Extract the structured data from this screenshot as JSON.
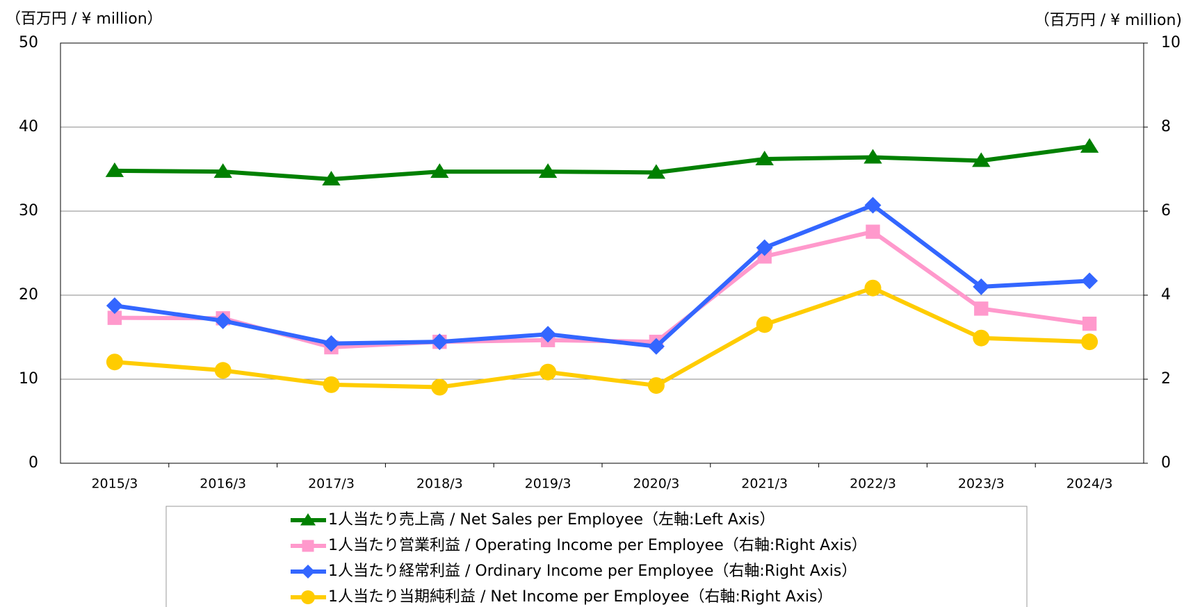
{
  "chart_data": {
    "type": "line",
    "y_label": "（百万円 / ¥ million）",
    "y2_label": "（百万円 / ¥ million)",
    "categories": [
      "2015/3",
      "2016/3",
      "2017/3",
      "2018/3",
      "2019/3",
      "2020/3",
      "2021/3",
      "2022/3",
      "2023/3",
      "2024/3"
    ],
    "ylim": [
      0,
      50
    ],
    "yticks": [
      0,
      10,
      20,
      30,
      40,
      50
    ],
    "y2lim": [
      0,
      10
    ],
    "y2ticks": [
      0,
      2,
      4,
      6,
      8,
      10
    ],
    "grid": true,
    "series": [
      {
        "name": "1人当たり売上高 / Net Sales per Employee（左軸:Left Axis）",
        "color": "#008000",
        "marker": "triangle",
        "values": [
          34.8,
          34.7,
          33.8,
          34.7,
          34.7,
          34.6,
          36.2,
          36.4,
          36.0,
          37.7
        ]
      },
      {
        "name": "1人当たり営業利益 / Operating Income per Employee（右軸:Right Axis）",
        "color": "#ff99cc",
        "marker": "square",
        "axis": "y2",
        "values": [
          3.46,
          3.45,
          2.76,
          2.89,
          2.93,
          2.89,
          4.92,
          5.51,
          3.68,
          3.32
        ]
      },
      {
        "name": "1人当たり経常利益 / Ordinary Income per Employee（右軸:Right Axis）",
        "color": "#3366ff",
        "marker": "diamond",
        "axis": "y2",
        "values": [
          3.75,
          3.39,
          2.85,
          2.89,
          3.07,
          2.78,
          5.13,
          6.14,
          4.2,
          4.34
        ]
      },
      {
        "name": "1人当たり当期純利益 / Net Income per Employee（右軸:Right Axis）",
        "color": "#ffcc00",
        "marker": "circle",
        "axis": "y2",
        "values": [
          2.41,
          2.21,
          1.87,
          1.81,
          2.17,
          1.85,
          3.3,
          4.17,
          2.98,
          2.89
        ]
      }
    ]
  }
}
